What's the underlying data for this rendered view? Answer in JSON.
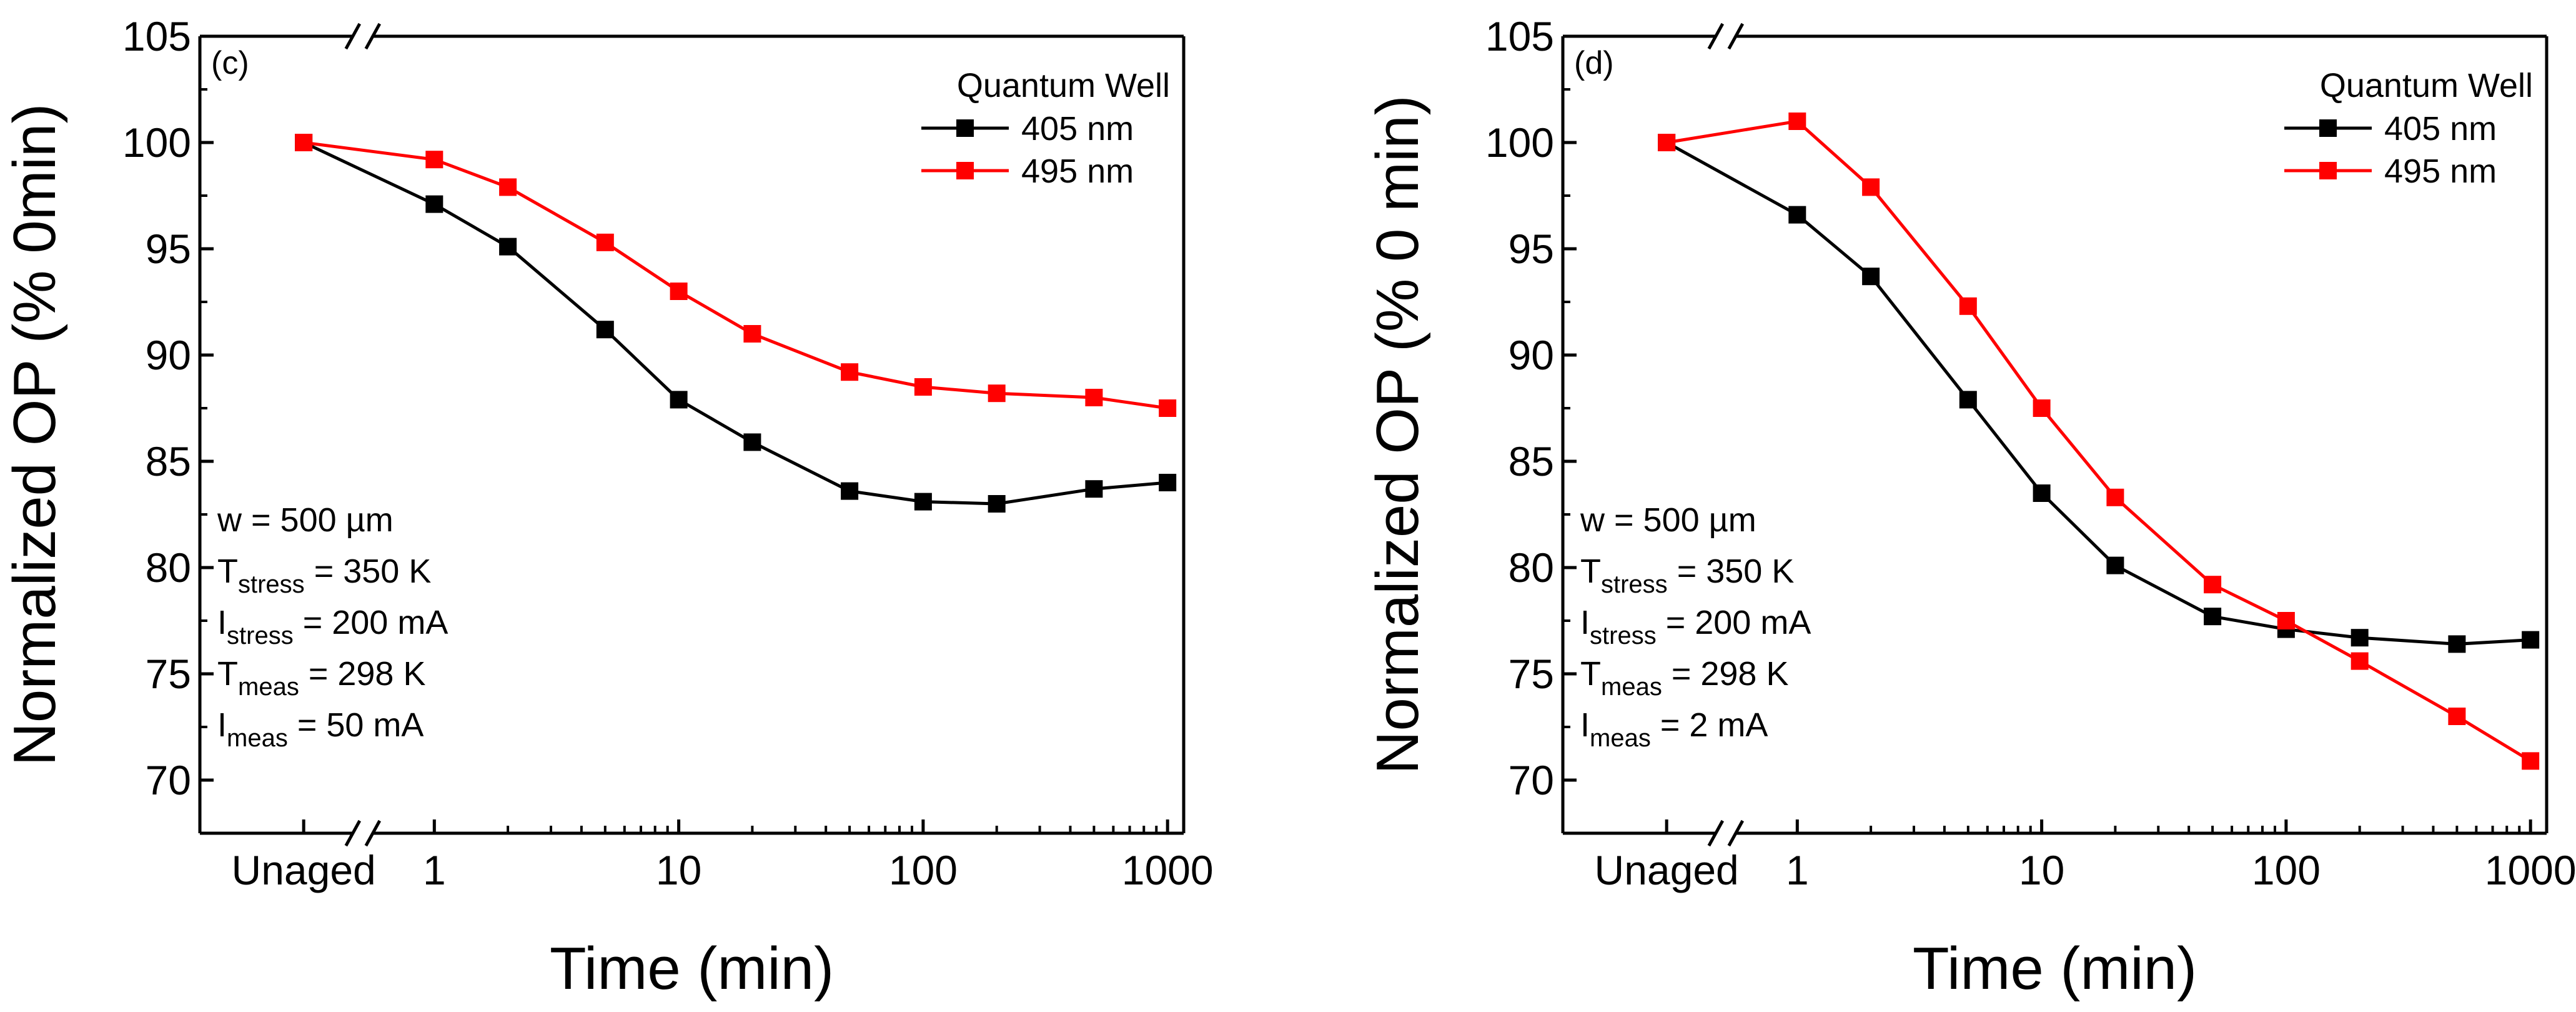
{
  "chart_data": [
    {
      "type": "line",
      "panel_label": "(c)",
      "xlabel": "Time (min)",
      "ylabel": "Normalized OP (% 0min)",
      "xscale": "log",
      "x_tick_labels": [
        "Unaged",
        "1",
        "10",
        "100",
        "1000"
      ],
      "y_ticks": [
        70,
        75,
        80,
        85,
        90,
        95,
        100,
        105
      ],
      "ylim": [
        67.5,
        105
      ],
      "legend_title": "Quantum Well",
      "legend_position": "top-right",
      "series": [
        {
          "name": "405 nm",
          "color": "#000000",
          "points": [
            {
              "x": "Unaged",
              "y": 100
            },
            {
              "x": 1,
              "y": 97.1
            },
            {
              "x": 2,
              "y": 95.1
            },
            {
              "x": 5,
              "y": 91.2
            },
            {
              "x": 10,
              "y": 87.9
            },
            {
              "x": 20,
              "y": 85.9
            },
            {
              "x": 50,
              "y": 83.6
            },
            {
              "x": 100,
              "y": 83.1
            },
            {
              "x": 200,
              "y": 83.0
            },
            {
              "x": 500,
              "y": 83.7
            },
            {
              "x": 1000,
              "y": 84.0
            }
          ]
        },
        {
          "name": "495 nm",
          "color": "#ff0000",
          "points": [
            {
              "x": "Unaged",
              "y": 100
            },
            {
              "x": 1,
              "y": 99.2
            },
            {
              "x": 2,
              "y": 97.9
            },
            {
              "x": 5,
              "y": 95.3
            },
            {
              "x": 10,
              "y": 93.0
            },
            {
              "x": 20,
              "y": 91.0
            },
            {
              "x": 50,
              "y": 89.2
            },
            {
              "x": 100,
              "y": 88.5
            },
            {
              "x": 200,
              "y": 88.2
            },
            {
              "x": 500,
              "y": 88.0
            },
            {
              "x": 1000,
              "y": 87.5
            }
          ]
        }
      ],
      "annotations": [
        {
          "main": "w = 500 µm",
          "sub": "",
          "tail": ""
        },
        {
          "main": "T",
          "sub": "stress",
          "tail": " = 350 K"
        },
        {
          "main": "I",
          "sub": "stress",
          "tail": " = 200 mA"
        },
        {
          "main": "T",
          "sub": "meas",
          "tail": " = 298 K"
        },
        {
          "main": "I",
          "sub": "meas",
          "tail": " = 50 mA"
        }
      ]
    },
    {
      "type": "line",
      "panel_label": "(d)",
      "xlabel": "Time (min)",
      "ylabel": "Normalized OP (% 0 min)",
      "xscale": "log",
      "x_tick_labels": [
        "Unaged",
        "1",
        "10",
        "100",
        "1000"
      ],
      "y_ticks": [
        70,
        75,
        80,
        85,
        90,
        95,
        100,
        105
      ],
      "ylim": [
        67.5,
        105
      ],
      "legend_title": "Quantum Well",
      "legend_position": "top-right",
      "series": [
        {
          "name": "405 nm",
          "color": "#000000",
          "points": [
            {
              "x": "Unaged",
              "y": 100
            },
            {
              "x": 1,
              "y": 96.6
            },
            {
              "x": 2,
              "y": 93.7
            },
            {
              "x": 5,
              "y": 87.9
            },
            {
              "x": 10,
              "y": 83.5
            },
            {
              "x": 20,
              "y": 80.1
            },
            {
              "x": 50,
              "y": 77.7
            },
            {
              "x": 100,
              "y": 77.1
            },
            {
              "x": 200,
              "y": 76.7
            },
            {
              "x": 500,
              "y": 76.4
            },
            {
              "x": 1000,
              "y": 76.6
            }
          ]
        },
        {
          "name": "495 nm",
          "color": "#ff0000",
          "points": [
            {
              "x": "Unaged",
              "y": 100
            },
            {
              "x": 1,
              "y": 101.0
            },
            {
              "x": 2,
              "y": 97.9
            },
            {
              "x": 5,
              "y": 92.3
            },
            {
              "x": 10,
              "y": 87.5
            },
            {
              "x": 20,
              "y": 83.3
            },
            {
              "x": 50,
              "y": 79.2
            },
            {
              "x": 100,
              "y": 77.5
            },
            {
              "x": 200,
              "y": 75.6
            },
            {
              "x": 500,
              "y": 73.0
            },
            {
              "x": 1000,
              "y": 70.9
            }
          ]
        }
      ],
      "annotations": [
        {
          "main": "w = 500 µm",
          "sub": "",
          "tail": ""
        },
        {
          "main": "T",
          "sub": "stress",
          "tail": " = 350 K"
        },
        {
          "main": "I",
          "sub": "stress",
          "tail": " = 200 mA"
        },
        {
          "main": "T",
          "sub": "meas",
          "tail": " = 298 K"
        },
        {
          "main": "I",
          "sub": "meas",
          "tail": " = 2 mA"
        }
      ]
    }
  ]
}
